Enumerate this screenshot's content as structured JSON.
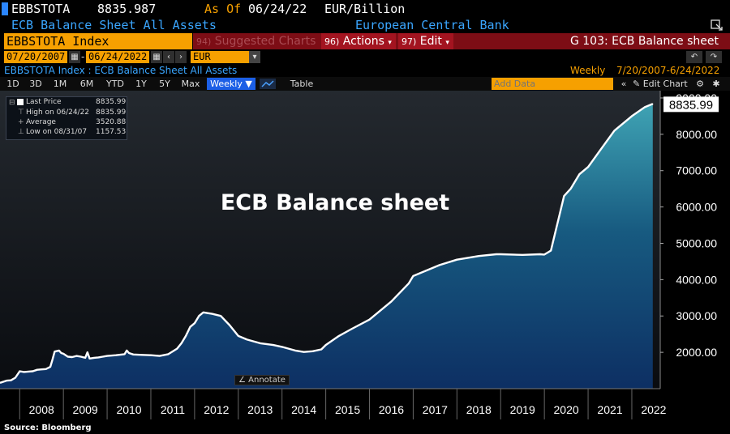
{
  "header": {
    "ticker": "EBBSTOTA",
    "last_value": "8835.987",
    "as_of_label": "As Of",
    "as_of_date": "06/24/22",
    "units": "EUR/Billion",
    "description": "ECB Balance Sheet All Assets",
    "source_name": "European Central Bank"
  },
  "command_bar": {
    "security": "EBBSTOTA Index",
    "suggested_num": "94)",
    "suggested_label": "Suggested Charts",
    "actions_num": "96)",
    "actions_label": "Actions",
    "edit_num": "97)",
    "edit_label": "Edit",
    "function_label": "G 103: ECB Balance sheet"
  },
  "date_bar": {
    "start_date": "07/20/2007",
    "end_date": "06/24/2022",
    "currency": "EUR"
  },
  "info_bar": {
    "series_desc": "EBBSTOTA Index : ECB Balance Sheet All Assets",
    "frequency": "Weekly",
    "range": "7/20/2007-6/24/2022"
  },
  "toolbar": {
    "periods": [
      "1D",
      "3D",
      "1M",
      "6M",
      "YTD",
      "1Y",
      "5Y",
      "Max"
    ],
    "frequency_select": "Weekly",
    "table_label": "Table",
    "add_data_placeholder": "Add Data",
    "edit_chart_label": "Edit Chart"
  },
  "legend": {
    "last_price_label": "Last Price",
    "last_price_value": "8835.99",
    "high_label": "High on 06/24/22",
    "high_value": "8835.99",
    "average_label": "Average",
    "average_value": "3520.88",
    "low_label": "Low on 08/31/07",
    "low_value": "1157.53"
  },
  "annotate_label": "Annotate",
  "source": "Source: Bloomberg",
  "chart_data": {
    "type": "area",
    "title": "ECB Balance sheet",
    "xlabel": "",
    "ylabel": "",
    "ylim": [
      1000,
      9200
    ],
    "xlim": [
      2007.55,
      2022.65
    ],
    "y_ticks": [
      2000,
      3000,
      4000,
      5000,
      6000,
      7000,
      8000,
      9000
    ],
    "x_tick_labels": [
      "2008",
      "2009",
      "2010",
      "2011",
      "2012",
      "2013",
      "2014",
      "2015",
      "2016",
      "2017",
      "2018",
      "2019",
      "2020",
      "2021",
      "2022"
    ],
    "last_value_label": "8835.99",
    "grid": false,
    "legend_position": "top-left",
    "series": [
      {
        "name": "Last Price",
        "x": [
          2007.55,
          2007.7,
          2007.8,
          2007.9,
          2008.0,
          2008.1,
          2008.2,
          2008.3,
          2008.4,
          2008.5,
          2008.6,
          2008.7,
          2008.75,
          2008.8,
          2008.9,
          2008.95,
          2009.0,
          2009.1,
          2009.2,
          2009.3,
          2009.4,
          2009.5,
          2009.55,
          2009.6,
          2009.7,
          2009.8,
          2009.9,
          2010.0,
          2010.2,
          2010.4,
          2010.45,
          2010.5,
          2010.6,
          2010.8,
          2011.0,
          2011.2,
          2011.4,
          2011.6,
          2011.7,
          2011.8,
          2011.9,
          2012.0,
          2012.1,
          2012.2,
          2012.4,
          2012.6,
          2012.8,
          2013.0,
          2013.2,
          2013.5,
          2013.8,
          2014.0,
          2014.3,
          2014.5,
          2014.7,
          2014.9,
          2015.0,
          2015.3,
          2015.6,
          2016.0,
          2016.5,
          2016.9,
          2017.0,
          2017.3,
          2017.6,
          2018.0,
          2018.5,
          2018.9,
          2019.0,
          2019.5,
          2019.9,
          2020.0,
          2020.15,
          2020.25,
          2020.35,
          2020.45,
          2020.6,
          2020.8,
          2021.0,
          2021.3,
          2021.6,
          2022.0,
          2022.3,
          2022.48
        ],
        "values": [
          1160,
          1220,
          1230,
          1300,
          1480,
          1460,
          1470,
          1480,
          1520,
          1530,
          1540,
          1600,
          1800,
          2020,
          2050,
          1980,
          1960,
          1880,
          1870,
          1900,
          1880,
          1850,
          2000,
          1830,
          1850,
          1860,
          1880,
          1900,
          1920,
          1950,
          2050,
          1980,
          1940,
          1930,
          1920,
          1900,
          1950,
          2100,
          2250,
          2450,
          2700,
          2800,
          3000,
          3100,
          3060,
          3000,
          2750,
          2450,
          2350,
          2250,
          2200,
          2150,
          2050,
          2010,
          2030,
          2080,
          2200,
          2450,
          2650,
          2900,
          3400,
          3900,
          4100,
          4250,
          4400,
          4550,
          4650,
          4700,
          4700,
          4680,
          4700,
          4690,
          4800,
          5300,
          5800,
          6300,
          6500,
          6900,
          7100,
          7600,
          8100,
          8500,
          8750,
          8836
        ]
      }
    ]
  }
}
